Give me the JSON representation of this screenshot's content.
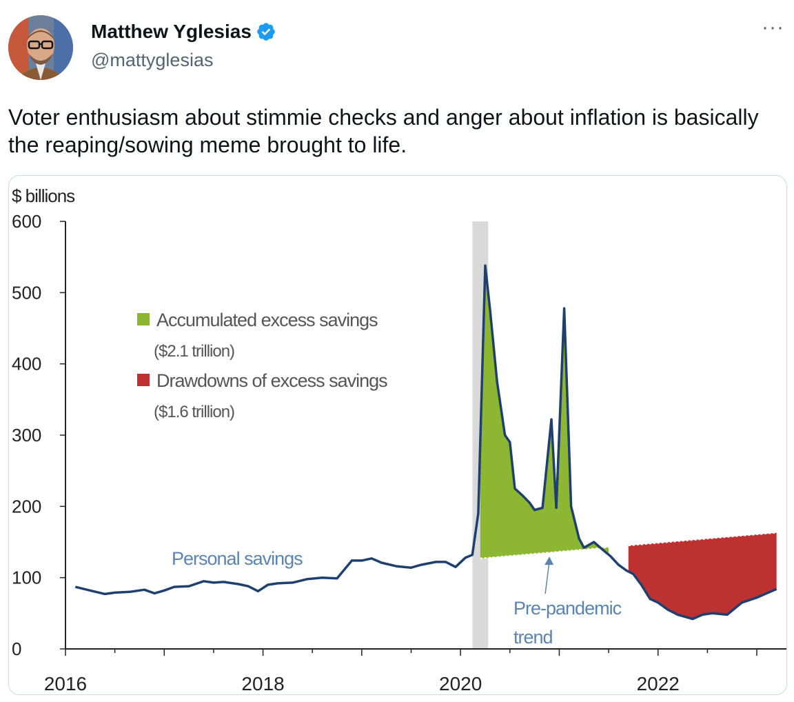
{
  "author": {
    "name": "Matthew Yglesias",
    "handle": "@mattyglesias",
    "more_label": "···"
  },
  "tweet": {
    "text": "Voter enthusiasm about stimmie checks and anger about inflation is basically the reaping/sowing meme brought to life."
  },
  "colors": {
    "line": "#1f3f6e",
    "excess": "#8db733",
    "drawdown": "#bd3131",
    "recession": "#d9d9d9",
    "annotation": "#5b83b0"
  },
  "chart_data": {
    "type": "area",
    "unit_label": "$ billions",
    "ylim": [
      0,
      600
    ],
    "xlim": [
      2016,
      2023.3
    ],
    "y_ticks": [
      "0",
      "100",
      "200",
      "300",
      "400",
      "500",
      "600"
    ],
    "x_ticks": [
      "2016",
      "2018",
      "2020",
      "2022"
    ],
    "recession_band": [
      2020.12,
      2020.28
    ],
    "legend": [
      {
        "label": "Accumulated excess savings",
        "sub": "($2.1 trillion)",
        "color": "#8db733"
      },
      {
        "label": "Drawdowns of excess savings",
        "sub": "($1.6 trillion)",
        "color": "#bd3131"
      }
    ],
    "annotations": {
      "series_label": "Personal savings",
      "trend_label_1": "Pre-pandemic",
      "trend_label_2": "trend"
    },
    "trend": {
      "x": [
        2020.2,
        2023.2
      ],
      "y": [
        127,
        163
      ]
    },
    "excess_range": [
      2020.2,
      2021.5
    ],
    "drawdown_range": [
      2021.7,
      2023.2
    ],
    "series": [
      {
        "name": "Personal savings",
        "x": [
          2016.1,
          2016.25,
          2016.4,
          2016.5,
          2016.65,
          2016.8,
          2016.9,
          2017.0,
          2017.1,
          2017.25,
          2017.4,
          2017.5,
          2017.6,
          2017.75,
          2017.85,
          2017.95,
          2018.05,
          2018.15,
          2018.3,
          2018.45,
          2018.6,
          2018.75,
          2018.9,
          2019.0,
          2019.1,
          2019.2,
          2019.35,
          2019.5,
          2019.6,
          2019.75,
          2019.85,
          2019.95,
          2020.05,
          2020.12,
          2020.18,
          2020.25,
          2020.3,
          2020.37,
          2020.45,
          2020.5,
          2020.55,
          2020.63,
          2020.7,
          2020.75,
          2020.83,
          2020.92,
          2020.97,
          2021.05,
          2021.12,
          2021.2,
          2021.25,
          2021.35,
          2021.45,
          2021.52,
          2021.6,
          2021.68,
          2021.75,
          2021.83,
          2021.92,
          2022.0,
          2022.1,
          2022.2,
          2022.35,
          2022.45,
          2022.55,
          2022.7,
          2022.85,
          2023.0,
          2023.1,
          2023.2
        ],
        "y": [
          87,
          82,
          77,
          79,
          80,
          83,
          78,
          82,
          87,
          88,
          95,
          93,
          94,
          91,
          88,
          81,
          90,
          92,
          93,
          98,
          100,
          99,
          124,
          124,
          127,
          121,
          116,
          114,
          118,
          122,
          122,
          115,
          128,
          132,
          190,
          538,
          475,
          375,
          300,
          290,
          225,
          215,
          205,
          195,
          198,
          322,
          198,
          478,
          200,
          155,
          142,
          150,
          138,
          130,
          118,
          110,
          105,
          90,
          70,
          65,
          55,
          48,
          42,
          48,
          50,
          48,
          65,
          72,
          78,
          84
        ]
      }
    ]
  }
}
